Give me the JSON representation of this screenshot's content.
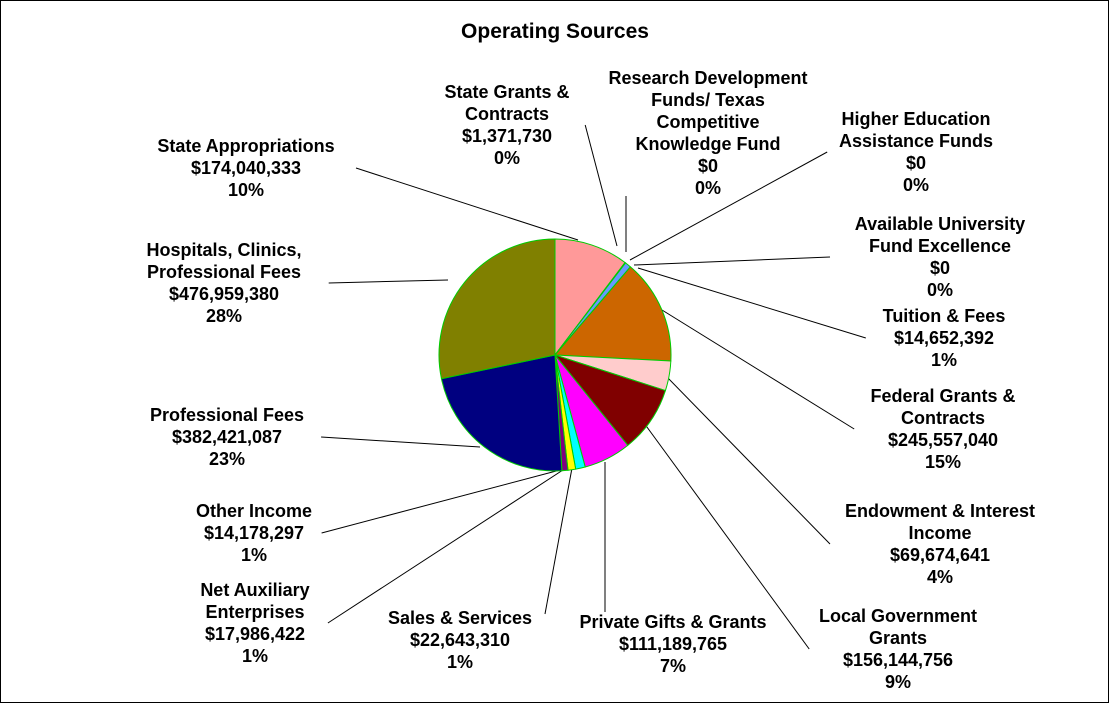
{
  "chart_data": {
    "type": "pie",
    "title": "Operating Sources",
    "slices": [
      {
        "name": "State Appropriations",
        "value": 174040333,
        "value_label": "$174,040,333",
        "percent": "10%",
        "color": "#FF9999"
      },
      {
        "name": "State Grants & Contracts",
        "value": 1371730,
        "value_label": "$1,371,730",
        "percent": "0%",
        "color": "#993366"
      },
      {
        "name": "Research Development Funds/ Texas Competitive Knowledge Fund",
        "value": 0,
        "value_label": "$0",
        "percent": "0%",
        "color": "#FFFFCC"
      },
      {
        "name": "Higher Education Assistance Funds",
        "value": 0,
        "value_label": "$0",
        "percent": "0%",
        "color": "#CCFFFF"
      },
      {
        "name": "Available University Fund Excellence",
        "value": 0,
        "value_label": "$0",
        "percent": "0%",
        "color": "#660066"
      },
      {
        "name": "Tuition & Fees",
        "value": 14652392,
        "value_label": "$14,652,392",
        "percent": "1%",
        "color": "#6699FF"
      },
      {
        "name": "Federal Grants & Contracts",
        "value": 245557040,
        "value_label": "$245,557,040",
        "percent": "15%",
        "color": "#CC6600"
      },
      {
        "name": "Endowment & Interest Income",
        "value": 69674641,
        "value_label": "$69,674,641",
        "percent": "4%",
        "color": "#FFCCCC"
      },
      {
        "name": "Local Government Grants",
        "value": 156144756,
        "value_label": "$156,144,756",
        "percent": "9%",
        "color": "#800000"
      },
      {
        "name": "Private Gifts & Grants",
        "value": 111189765,
        "value_label": "$111,189,765",
        "percent": "7%",
        "color": "#FF00FF"
      },
      {
        "name": "Sales & Services",
        "value": 22643310,
        "value_label": "$22,643,310",
        "percent": "1%",
        "color": "#00FFFF"
      },
      {
        "name": "Net Auxiliary Enterprises",
        "value": 17986422,
        "value_label": "$17,986,422",
        "percent": "1%",
        "color": "#FFFF00"
      },
      {
        "name": "Other Income",
        "value": 14178297,
        "value_label": "$14,178,297",
        "percent": "1%",
        "color": "#800080"
      },
      {
        "name": "Professional Fees",
        "value": 382421087,
        "value_label": "$382,421,087",
        "percent": "23%",
        "color": "#000080"
      },
      {
        "name": "Hospitals, Clinics, Professional Fees",
        "value": 476959380,
        "value_label": "$476,959,380",
        "percent": "28%",
        "color": "#808000"
      }
    ],
    "labels": [
      {
        "lines": [
          "State Appropriations",
          "$174,040,333",
          "10%"
        ]
      },
      {
        "lines": [
          "State Grants &",
          "Contracts",
          "$1,371,730",
          "0%"
        ]
      },
      {
        "lines": [
          "Research Development",
          "Funds/ Texas",
          "Competitive",
          "Knowledge Fund",
          "$0",
          "0%"
        ]
      },
      {
        "lines": [
          "Higher Education",
          "Assistance Funds",
          "$0",
          "0%"
        ]
      },
      {
        "lines": [
          "Available University",
          "Fund Excellence",
          "$0",
          "0%"
        ]
      },
      {
        "lines": [
          "Tuition & Fees",
          "$14,652,392",
          "1%"
        ]
      },
      {
        "lines": [
          "Federal Grants &",
          "Contracts",
          "$245,557,040",
          "15%"
        ]
      },
      {
        "lines": [
          "Endowment & Interest",
          "Income",
          "$69,674,641",
          "4%"
        ]
      },
      {
        "lines": [
          "Local Government",
          "Grants",
          "$156,144,756",
          "9%"
        ]
      },
      {
        "lines": [
          "Private Gifts & Grants",
          "$111,189,765",
          "7%"
        ]
      },
      {
        "lines": [
          "Sales & Services",
          "$22,643,310",
          "1%"
        ]
      },
      {
        "lines": [
          "Net Auxiliary",
          "Enterprises",
          "$17,986,422",
          "1%"
        ]
      },
      {
        "lines": [
          "Other Income",
          "$14,178,297",
          "1%"
        ]
      },
      {
        "lines": [
          "Professional Fees",
          "$382,421,087",
          "23%"
        ]
      },
      {
        "lines": [
          "Hospitals, Clinics,",
          "Professional Fees",
          "$476,959,380",
          "28%"
        ]
      }
    ],
    "slice_border_color": "#00CC00",
    "leader_line_color": "#000000"
  }
}
